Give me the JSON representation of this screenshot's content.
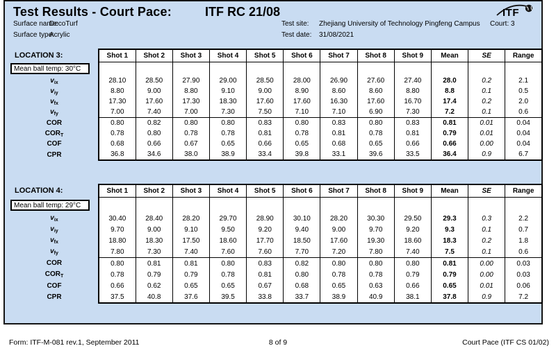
{
  "colors": {
    "panel_bg": "#c9dcf2",
    "border": "#141414",
    "table_bg": "#ffffff"
  },
  "header": {
    "title": "Test Results - Court Pace:",
    "report_code": "ITF RC 21/08",
    "logo_text": "ITF",
    "surface_name_label": "Surface name:",
    "surface_name": "DecoTurf",
    "surface_type_label": "Surface type:",
    "surface_type": "Acrylic",
    "test_site_label": "Test site:",
    "test_site": "Zhejiang University of Technology Pingfeng Campus",
    "test_date_label": "Test date:",
    "test_date": "31/08/2021",
    "court_label": "Court:",
    "court_value": "3"
  },
  "table": {
    "columns": [
      "Shot 1",
      "Shot 2",
      "Shot 3",
      "Shot 4",
      "Shot 5",
      "Shot 6",
      "Shot 7",
      "Shot 8",
      "Shot 9",
      "Mean",
      "SE",
      "Range"
    ]
  },
  "locations": [
    {
      "name": "LOCATION 3:",
      "ball_temp": "Mean ball temp: 30°C",
      "rows": [
        {
          "label": {
            "base": "v",
            "sub": "ix",
            "vstyle": true
          },
          "shots": [
            "28.10",
            "28.50",
            "27.90",
            "29.00",
            "28.50",
            "28.00",
            "26.90",
            "27.60",
            "27.40"
          ],
          "mean": "28.0",
          "se": "0.2",
          "range": "2.1"
        },
        {
          "label": {
            "base": "v",
            "sub": "iy",
            "vstyle": true
          },
          "shots": [
            "8.80",
            "9.00",
            "8.80",
            "9.10",
            "9.00",
            "8.90",
            "8.60",
            "8.60",
            "8.80"
          ],
          "mean": "8.8",
          "se": "0.1",
          "range": "0.5"
        },
        {
          "label": {
            "base": "v",
            "sub": "fx",
            "vstyle": true
          },
          "shots": [
            "17.30",
            "17.60",
            "17.30",
            "18.30",
            "17.60",
            "17.60",
            "16.30",
            "17.60",
            "16.70"
          ],
          "mean": "17.4",
          "se": "0.2",
          "range": "2.0"
        },
        {
          "label": {
            "base": "v",
            "sub": "fy",
            "vstyle": true
          },
          "shots": [
            "7.00",
            "7.40",
            "7.00",
            "7.30",
            "7.50",
            "7.10",
            "7.10",
            "6.90",
            "7.30"
          ],
          "mean": "7.2",
          "se": "0.1",
          "range": "0.6"
        },
        {
          "label": {
            "base": "COR",
            "sub": "",
            "vstyle": false
          },
          "shots": [
            "0.80",
            "0.82",
            "0.80",
            "0.80",
            "0.83",
            "0.80",
            "0.83",
            "0.80",
            "0.83"
          ],
          "mean": "0.81",
          "se": "0.01",
          "range": "0.04"
        },
        {
          "label": {
            "base": "COR",
            "sub": "T",
            "vstyle": false
          },
          "shots": [
            "0.78",
            "0.80",
            "0.78",
            "0.78",
            "0.81",
            "0.78",
            "0.81",
            "0.78",
            "0.81"
          ],
          "mean": "0.79",
          "se": "0.01",
          "range": "0.04"
        },
        {
          "label": {
            "base": "COF",
            "sub": "",
            "vstyle": false
          },
          "shots": [
            "0.68",
            "0.66",
            "0.67",
            "0.65",
            "0.66",
            "0.65",
            "0.68",
            "0.65",
            "0.66"
          ],
          "mean": "0.66",
          "se": "0.00",
          "range": "0.04"
        },
        {
          "label": {
            "base": "CPR",
            "sub": "",
            "vstyle": false
          },
          "shots": [
            "36.8",
            "34.6",
            "38.0",
            "38.9",
            "33.4",
            "39.8",
            "33.1",
            "39.6",
            "33.5"
          ],
          "mean": "36.4",
          "se": "0.9",
          "range": "6.7"
        }
      ]
    },
    {
      "name": "LOCATION 4:",
      "ball_temp": "Mean ball temp: 29°C",
      "rows": [
        {
          "label": {
            "base": "v",
            "sub": "ix",
            "vstyle": true
          },
          "shots": [
            "30.40",
            "28.40",
            "28.20",
            "29.70",
            "28.90",
            "30.10",
            "28.20",
            "30.30",
            "29.50"
          ],
          "mean": "29.3",
          "se": "0.3",
          "range": "2.2"
        },
        {
          "label": {
            "base": "v",
            "sub": "iy",
            "vstyle": true
          },
          "shots": [
            "9.70",
            "9.00",
            "9.10",
            "9.50",
            "9.20",
            "9.40",
            "9.00",
            "9.70",
            "9.20"
          ],
          "mean": "9.3",
          "se": "0.1",
          "range": "0.7"
        },
        {
          "label": {
            "base": "v",
            "sub": "fx",
            "vstyle": true
          },
          "shots": [
            "18.80",
            "18.30",
            "17.50",
            "18.60",
            "17.70",
            "18.50",
            "17.60",
            "19.30",
            "18.60"
          ],
          "mean": "18.3",
          "se": "0.2",
          "range": "1.8"
        },
        {
          "label": {
            "base": "v",
            "sub": "fy",
            "vstyle": true
          },
          "shots": [
            "7.80",
            "7.30",
            "7.40",
            "7.60",
            "7.60",
            "7.70",
            "7.20",
            "7.80",
            "7.40"
          ],
          "mean": "7.5",
          "se": "0.1",
          "range": "0.6"
        },
        {
          "label": {
            "base": "COR",
            "sub": "",
            "vstyle": false
          },
          "shots": [
            "0.80",
            "0.81",
            "0.81",
            "0.80",
            "0.83",
            "0.82",
            "0.80",
            "0.80",
            "0.80"
          ],
          "mean": "0.81",
          "se": "0.00",
          "range": "0.03"
        },
        {
          "label": {
            "base": "COR",
            "sub": "T",
            "vstyle": false
          },
          "shots": [
            "0.78",
            "0.79",
            "0.79",
            "0.78",
            "0.81",
            "0.80",
            "0.78",
            "0.78",
            "0.79"
          ],
          "mean": "0.79",
          "se": "0.00",
          "range": "0.03"
        },
        {
          "label": {
            "base": "COF",
            "sub": "",
            "vstyle": false
          },
          "shots": [
            "0.66",
            "0.62",
            "0.65",
            "0.65",
            "0.67",
            "0.68",
            "0.65",
            "0.63",
            "0.66"
          ],
          "mean": "0.65",
          "se": "0.01",
          "range": "0.06"
        },
        {
          "label": {
            "base": "CPR",
            "sub": "",
            "vstyle": false
          },
          "shots": [
            "37.5",
            "40.8",
            "37.6",
            "39.5",
            "33.8",
            "33.7",
            "38.9",
            "40.9",
            "38.1"
          ],
          "mean": "37.8",
          "se": "0.9",
          "range": "7.2"
        }
      ]
    }
  ],
  "footer": {
    "left": "Form: ITF-M-081 rev.1, September 2011",
    "center": "8 of 9",
    "right": "Court Pace (ITF CS 01/02)"
  }
}
